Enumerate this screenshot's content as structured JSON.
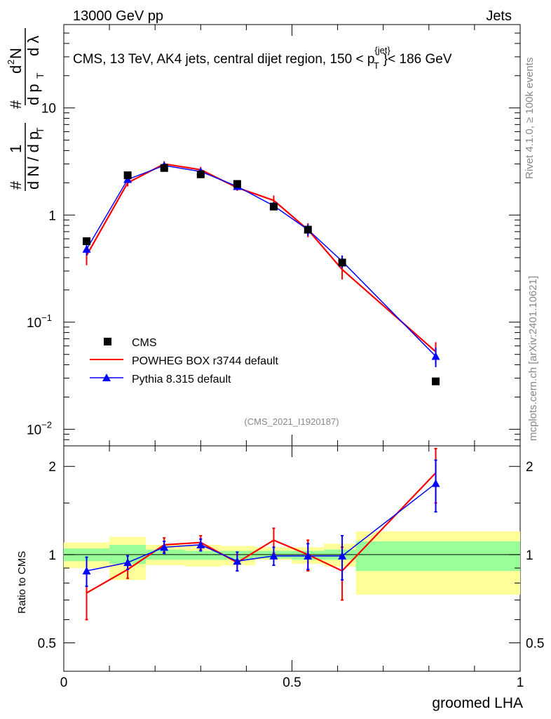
{
  "header": {
    "left": "13000 GeV pp",
    "right": "Jets"
  },
  "side": {
    "rivet": "Rivet 4.1.0, ≥ 100k events",
    "mcplots": "mcplots.cern.ch [arXiv:2401.10621]"
  },
  "yaxis_label": {
    "hash1": "#",
    "one": "1",
    "dN": "d N / d p",
    "dN_sub": "T",
    "hash2": "#",
    "d2N": "d",
    "d2N_sup": "2",
    "d2N_tail": "N",
    "dp": "d p",
    "dp_sub": "T",
    "dl": "d λ"
  },
  "ratio_ylabel": "Ratio to CMS",
  "xlabel": "groomed LHA",
  "chart_data": {
    "type": "line",
    "title_parts": {
      "prefix": "CMS, 13 TeV, AK4 jets, central dijet region, 150 < p",
      "sup": "{jet}",
      "sub": "T",
      "suffix": "}< 186 GeV"
    },
    "watermark": "(CMS_2021_I1920187)",
    "xlim": [
      0,
      1
    ],
    "ylim_main": [
      0.007,
      60
    ],
    "ylim_ratio": [
      0.4,
      2.35
    ],
    "y_scale": "log",
    "xticks": [
      {
        "v": 0,
        "label": "0"
      },
      {
        "v": 0.5,
        "label": "0.5"
      },
      {
        "v": 1,
        "label": "1"
      }
    ],
    "yticks_main": [
      {
        "v": 10,
        "base": "10",
        "exp": ""
      },
      {
        "v": 1,
        "base": "1",
        "exp": ""
      },
      {
        "v": 0.1,
        "base": "10",
        "exp": "−1"
      },
      {
        "v": 0.01,
        "base": "10",
        "exp": "−2"
      }
    ],
    "yticks_ratio": [
      {
        "v": 2,
        "label": "2"
      },
      {
        "v": 1,
        "label": "1"
      },
      {
        "v": 0.5,
        "label": "0.5"
      }
    ],
    "series": [
      {
        "name": "CMS",
        "color": "#000000",
        "marker": "square",
        "x": [
          0.05,
          0.14,
          0.22,
          0.3,
          0.38,
          0.46,
          0.535,
          0.61,
          0.815
        ],
        "y": [
          0.57,
          2.35,
          2.75,
          2.4,
          1.95,
          1.2,
          0.73,
          0.36,
          0.028
        ]
      },
      {
        "name": "POWHEG BOX r3744 default",
        "color": "#ff0000",
        "marker": "line",
        "x": [
          0.05,
          0.14,
          0.22,
          0.3,
          0.38,
          0.46,
          0.535,
          0.61,
          0.815
        ],
        "y": [
          0.42,
          2.0,
          3.0,
          2.65,
          1.8,
          1.37,
          0.73,
          0.31,
          0.053
        ],
        "err": [
          0.08,
          0.15,
          0.18,
          0.17,
          0.12,
          0.15,
          0.11,
          0.06,
          0.012
        ],
        "ratio": [
          0.74,
          0.89,
          1.08,
          1.1,
          0.94,
          1.12,
          1.0,
          0.88,
          1.9
        ],
        "ratio_err": [
          0.14,
          0.06,
          0.06,
          0.06,
          0.06,
          0.11,
          0.12,
          0.18,
          0.4
        ]
      },
      {
        "name": "Pythia 8.315 default",
        "color": "#0000ff",
        "marker": "triangle",
        "x": [
          0.05,
          0.14,
          0.22,
          0.3,
          0.38,
          0.46,
          0.535,
          0.61,
          0.815
        ],
        "y": [
          0.48,
          2.15,
          2.9,
          2.55,
          1.85,
          1.22,
          0.73,
          0.37,
          0.048
        ],
        "err": [
          0.06,
          0.12,
          0.15,
          0.14,
          0.1,
          0.1,
          0.09,
          0.05,
          0.01
        ],
        "ratio": [
          0.88,
          0.94,
          1.06,
          1.08,
          0.95,
          0.99,
          0.99,
          0.99,
          1.75
        ],
        "ratio_err": [
          0.1,
          0.05,
          0.05,
          0.05,
          0.07,
          0.07,
          0.1,
          0.17,
          0.35
        ]
      }
    ],
    "uncertainty_bands": {
      "edges": [
        0.0,
        0.1,
        0.18,
        0.265,
        0.345,
        0.42,
        0.5,
        0.57,
        0.64,
        1.0
      ],
      "inner": [
        [
          0.95,
          1.05
        ],
        [
          0.93,
          1.08
        ],
        [
          0.96,
          1.04
        ],
        [
          0.96,
          1.03
        ],
        [
          0.96,
          1.03
        ],
        [
          0.97,
          1.03
        ],
        [
          0.96,
          1.03
        ],
        [
          0.96,
          1.04
        ],
        [
          0.88,
          1.11
        ]
      ],
      "outer": [
        [
          0.9,
          1.1
        ],
        [
          0.82,
          1.15
        ],
        [
          0.92,
          1.08
        ],
        [
          0.91,
          1.08
        ],
        [
          0.92,
          1.07
        ],
        [
          0.96,
          1.06
        ],
        [
          0.93,
          1.06
        ],
        [
          0.91,
          1.09
        ],
        [
          0.73,
          1.2
        ]
      ],
      "inner_color": "#99ff99",
      "outer_color": "#ffff99"
    },
    "legend_position": "lower-left"
  }
}
